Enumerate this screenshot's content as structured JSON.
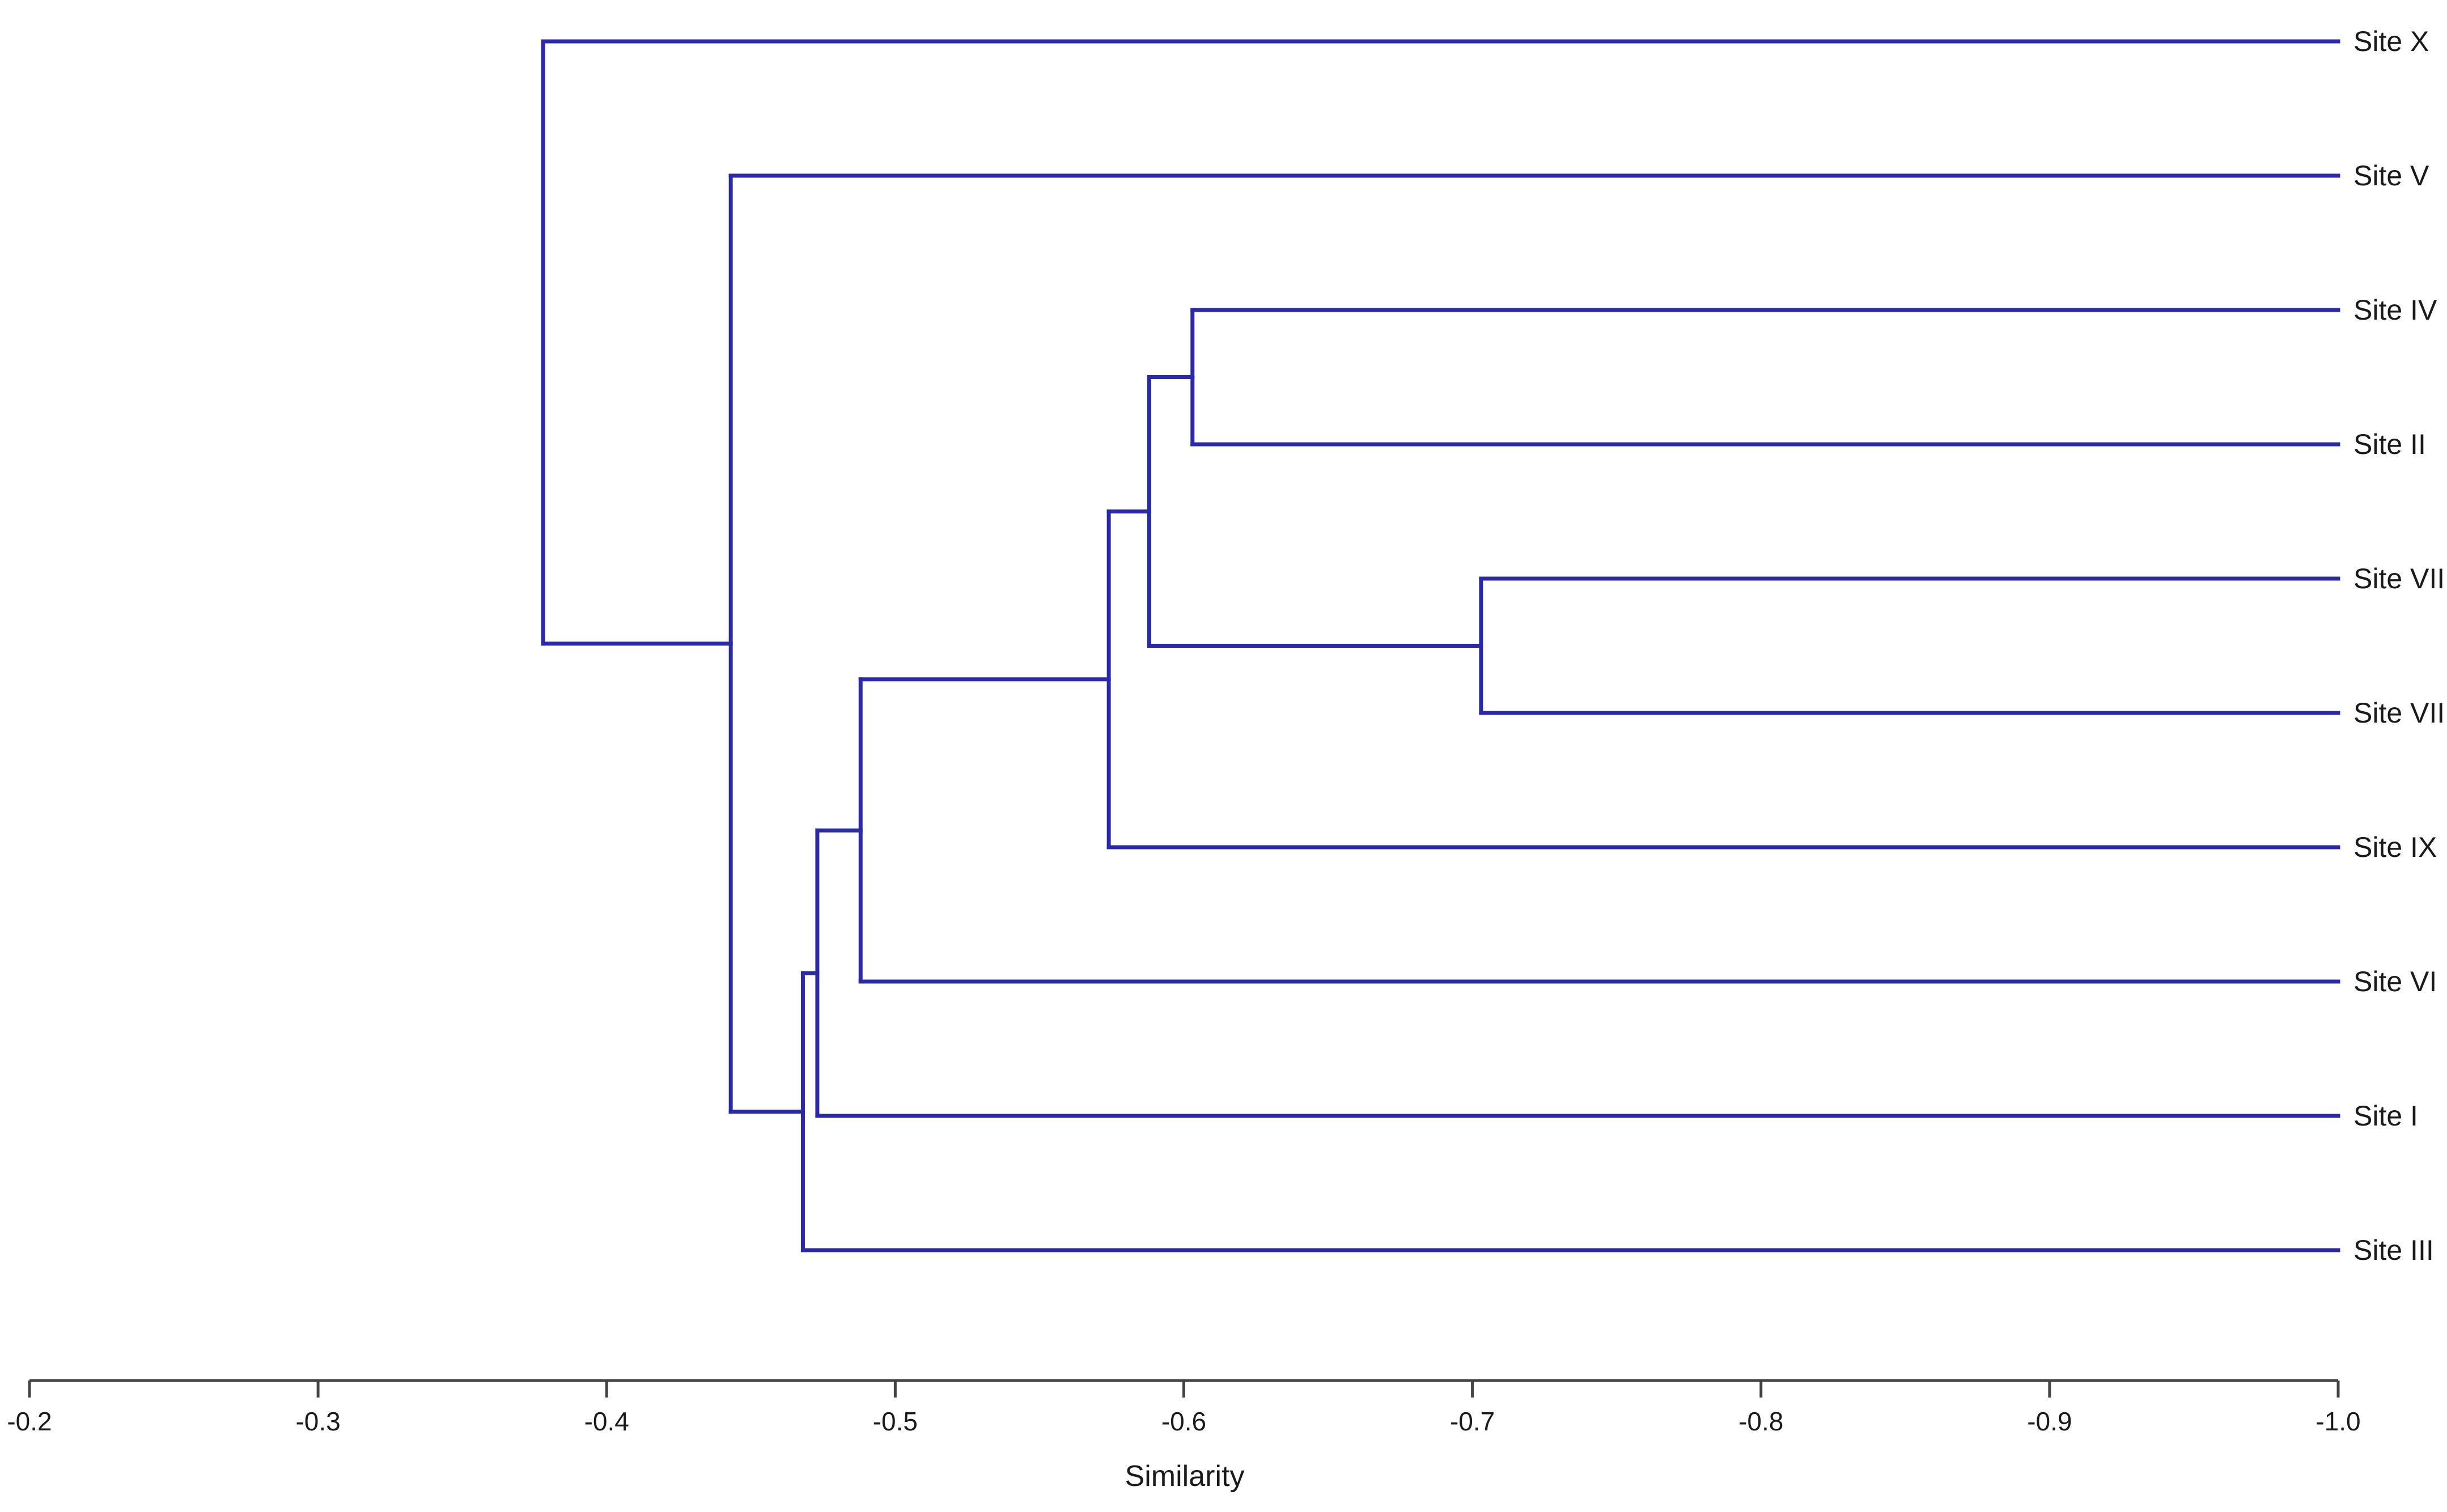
{
  "chart_data": {
    "type": "dendrogram",
    "xlabel": "Similarity",
    "xlim": [
      -0.2,
      -1.0
    ],
    "xticks": [
      -0.2,
      -0.3,
      -0.4,
      -0.5,
      -0.6,
      -0.7,
      -0.8,
      -0.9,
      -1.0
    ],
    "xtick_labels": [
      "-0.2",
      "-0.3",
      "-0.4",
      "-0.5",
      "-0.6",
      "-0.7",
      "-0.8",
      "-0.9",
      "-1.0"
    ],
    "leaves": [
      "Site X",
      "Site V",
      "Site IV",
      "Site II",
      "Site VII",
      "Site VIII",
      "Site IX",
      "Site VI",
      "Site I",
      "Site III"
    ],
    "merges": [
      {
        "id": "c1",
        "members": [
          "Site IV",
          "Site II"
        ],
        "similarity": -0.603
      },
      {
        "id": "c2",
        "members": [
          "Site VII",
          "Site VIII"
        ],
        "similarity": -0.703
      },
      {
        "id": "c3",
        "members": [
          "c1",
          "c2"
        ],
        "similarity": -0.588
      },
      {
        "id": "c4",
        "members": [
          "c3",
          "Site IX"
        ],
        "similarity": -0.574
      },
      {
        "id": "c5",
        "members": [
          "c4",
          "Site VI"
        ],
        "similarity": -0.488
      },
      {
        "id": "c6",
        "members": [
          "c5",
          "Site I"
        ],
        "similarity": -0.473
      },
      {
        "id": "c7",
        "members": [
          "c6",
          "Site III"
        ],
        "similarity": -0.468
      },
      {
        "id": "c8",
        "members": [
          "Site V",
          "c7"
        ],
        "similarity": -0.443
      },
      {
        "id": "c9",
        "members": [
          "Site X",
          "c8"
        ],
        "similarity": -0.378
      }
    ],
    "line_color": "#2a2aa8",
    "grid": false
  }
}
